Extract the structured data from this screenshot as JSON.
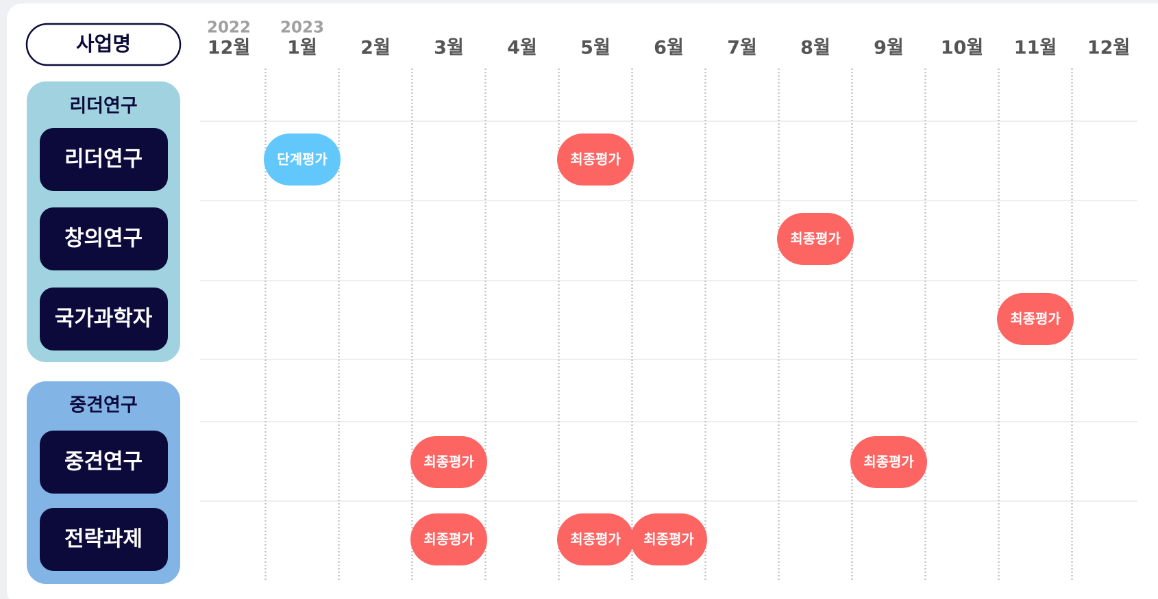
{
  "header": {
    "label": "사업명"
  },
  "months": [
    {
      "year": "2022",
      "label": "12월"
    },
    {
      "year": "2023",
      "label": "1월"
    },
    {
      "label": "2월"
    },
    {
      "label": "3월"
    },
    {
      "label": "4월"
    },
    {
      "label": "5월"
    },
    {
      "label": "6월"
    },
    {
      "label": "7월"
    },
    {
      "label": "8월"
    },
    {
      "label": "9월"
    },
    {
      "label": "10월"
    },
    {
      "label": "11월"
    },
    {
      "label": "12월"
    }
  ],
  "groups": [
    {
      "title": "리더연구",
      "color": "#a0d3df",
      "programs": [
        {
          "name": "리더연구",
          "cells": [
            null,
            {
              "label": "단계평가",
              "color": "#62c8fb"
            },
            null,
            null,
            null,
            {
              "label": "최종평가",
              "color": "#fd6563"
            },
            null,
            null,
            null,
            null,
            null,
            null,
            null
          ]
        },
        {
          "name": "창의연구",
          "cells": [
            null,
            null,
            null,
            null,
            null,
            null,
            null,
            null,
            {
              "label": "최종평가",
              "color": "#fd6563"
            },
            null,
            null,
            null,
            null
          ]
        },
        {
          "name": "국가과학자",
          "cells": [
            null,
            null,
            null,
            null,
            null,
            null,
            null,
            null,
            null,
            null,
            null,
            {
              "label": "최종평가",
              "color": "#fd6563"
            },
            null
          ]
        }
      ]
    },
    {
      "title": "중견연구",
      "color": "#82b4e6",
      "programs": [
        {
          "name": "중견연구",
          "cells": [
            null,
            null,
            null,
            {
              "label": "최종평가",
              "color": "#fd6563"
            },
            null,
            null,
            null,
            null,
            null,
            {
              "label": "최종평가",
              "color": "#fd6563"
            },
            null,
            null,
            null
          ]
        },
        {
          "name": "전략과제",
          "cells": [
            null,
            null,
            null,
            {
              "label": "최종평가",
              "color": "#fd6563"
            },
            null,
            {
              "label": "최종평가",
              "color": "#fd6563"
            },
            {
              "label": "최종평가",
              "color": "#fd6563"
            },
            null,
            null,
            null,
            null,
            null,
            null
          ]
        }
      ]
    }
  ]
}
